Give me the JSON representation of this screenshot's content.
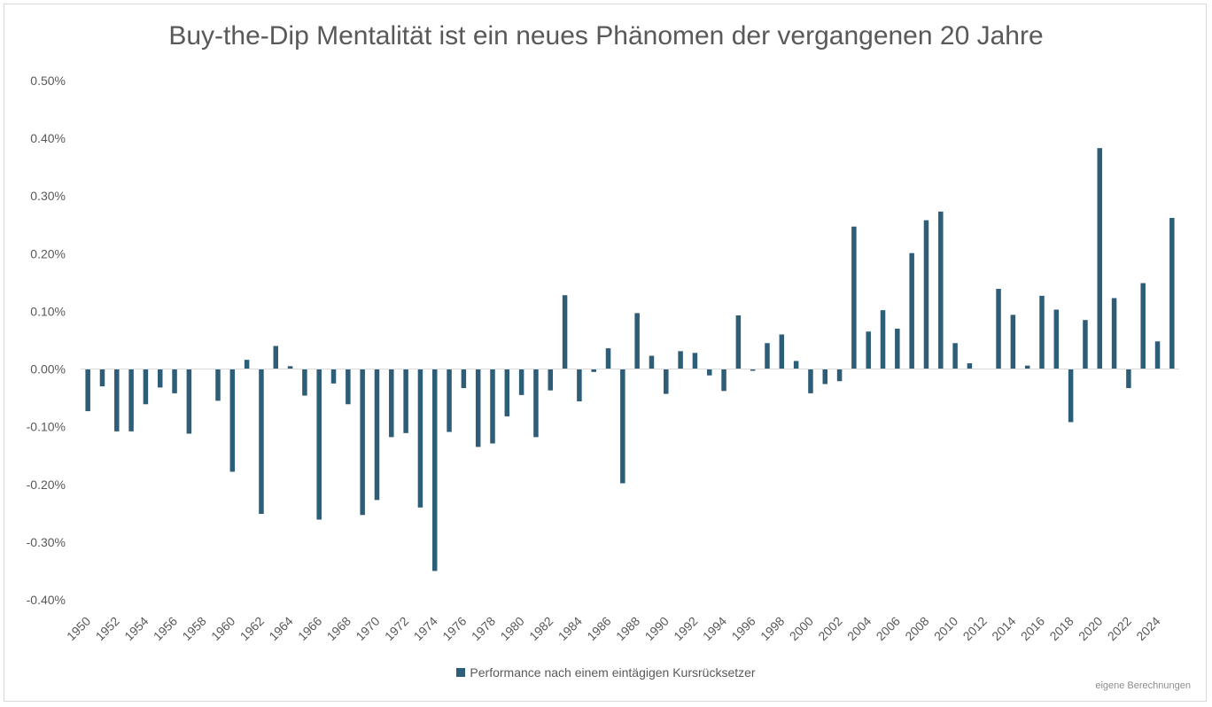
{
  "colors": {
    "bar": "#2e5d77",
    "axis_text": "#595959",
    "baseline": "#d9d9d9"
  },
  "legend": {
    "label": "Performance nach einem eintägigen Kursrücksetzer"
  },
  "source_note": "eigene Berechnungen",
  "chart_data": {
    "type": "bar",
    "title": "Buy-the-Dip Mentalität ist ein neues Phänomen der vergangenen 20 Jahre",
    "xlabel": "",
    "ylabel": "",
    "ylim": [
      -0.4,
      0.5
    ],
    "y_ticks": [
      0.5,
      0.4,
      0.3,
      0.2,
      0.1,
      0.0,
      -0.1,
      -0.2,
      -0.3,
      -0.4
    ],
    "y_tick_labels": [
      "0.50%",
      "0.40%",
      "0.30%",
      "0.20%",
      "0.10%",
      "0.00%",
      "-0.10%",
      "-0.20%",
      "-0.30%",
      "-0.40%"
    ],
    "x_tick_labels": [
      "1950",
      "1952",
      "1954",
      "1956",
      "1958",
      "1960",
      "1962",
      "1964",
      "1966",
      "1968",
      "1970",
      "1972",
      "1974",
      "1976",
      "1978",
      "1980",
      "1982",
      "1984",
      "1986",
      "1988",
      "1990",
      "1992",
      "1994",
      "1996",
      "1998",
      "2000",
      "2002",
      "2004",
      "2006",
      "2008",
      "2010",
      "2012",
      "2014",
      "2016",
      "2018",
      "2020",
      "2022",
      "2024"
    ],
    "grid": false,
    "legend_position": "bottom",
    "categories": [
      1950,
      1951,
      1952,
      1953,
      1954,
      1955,
      1956,
      1957,
      1958,
      1959,
      1960,
      1961,
      1962,
      1963,
      1964,
      1965,
      1966,
      1967,
      1968,
      1969,
      1970,
      1971,
      1972,
      1973,
      1974,
      1975,
      1976,
      1977,
      1978,
      1979,
      1980,
      1981,
      1982,
      1983,
      1984,
      1985,
      1986,
      1987,
      1988,
      1989,
      1990,
      1991,
      1992,
      1993,
      1994,
      1995,
      1996,
      1997,
      1998,
      1999,
      2000,
      2001,
      2002,
      2003,
      2004,
      2005,
      2006,
      2007,
      2008,
      2009,
      2010,
      2011,
      2012,
      2013,
      2014,
      2015,
      2016,
      2017,
      2018,
      2019,
      2020,
      2021,
      2022,
      2023,
      2024,
      2025
    ],
    "series": [
      {
        "name": "Performance nach einem eintägigen Kursrücksetzer",
        "values": [
          -0.073,
          -0.03,
          -0.108,
          -0.108,
          -0.061,
          -0.032,
          -0.042,
          -0.112,
          0.0,
          -0.055,
          -0.178,
          0.016,
          -0.251,
          0.04,
          0.005,
          -0.046,
          -0.261,
          -0.025,
          -0.061,
          -0.253,
          -0.227,
          -0.118,
          -0.111,
          -0.24,
          -0.35,
          -0.109,
          -0.033,
          -0.135,
          -0.129,
          -0.082,
          -0.045,
          -0.118,
          -0.037,
          0.128,
          -0.056,
          -0.005,
          0.036,
          -0.198,
          0.097,
          0.023,
          -0.043,
          0.031,
          0.028,
          -0.011,
          -0.038,
          0.093,
          -0.003,
          0.045,
          0.06,
          0.014,
          -0.042,
          -0.026,
          -0.021,
          0.247,
          0.065,
          0.102,
          0.07,
          0.201,
          0.258,
          0.273,
          0.045,
          0.01,
          0.0,
          0.139,
          0.094,
          0.006,
          0.127,
          0.103,
          -0.092,
          0.085,
          0.383,
          0.123,
          -0.033,
          0.149,
          0.048,
          0.262
        ]
      }
    ]
  }
}
